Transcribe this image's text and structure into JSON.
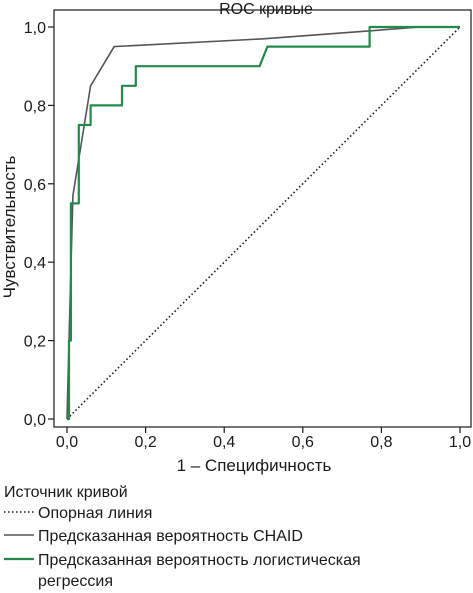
{
  "chart_data": {
    "type": "line",
    "title": "ROC кривые",
    "xlabel": "1 – Специфичность",
    "ylabel": "Чувствительность",
    "xlim": [
      0,
      1
    ],
    "ylim": [
      0,
      1
    ],
    "x_ticks": [
      "0,0",
      "0,2",
      "0,4",
      "0,6",
      "0,8",
      "1,0"
    ],
    "y_ticks": [
      "0,0",
      "0,2",
      "0,4",
      "0,6",
      "0,8",
      "1,0"
    ],
    "grid": false,
    "legend": {
      "title": "Источник кривой",
      "placement": "bottom"
    },
    "series": [
      {
        "name": "Опорная линия",
        "color": "#1a1a1a",
        "style": "dotted",
        "x": [
          0,
          1
        ],
        "y": [
          0,
          1
        ]
      },
      {
        "name": "Предсказанная вероятность CHAID",
        "color": "#555555",
        "style": "solid",
        "x": [
          0,
          0.005,
          0.015,
          0.06,
          0.12,
          0.5,
          0.9,
          1
        ],
        "y": [
          0,
          0.2,
          0.57,
          0.85,
          0.95,
          0.97,
          1,
          1
        ]
      },
      {
        "name": "Предсказанная вероятность логистическая регрессия",
        "color": "#228b4b",
        "style": "solid",
        "x": [
          0,
          0.005,
          0.005,
          0.01,
          0.01,
          0.03,
          0.03,
          0.045,
          0.045,
          0.06,
          0.06,
          0.14,
          0.14,
          0.175,
          0.175,
          0.49,
          0.51,
          0.76,
          0.77,
          0.77,
          1
        ],
        "y": [
          0,
          0,
          0.2,
          0.2,
          0.55,
          0.55,
          0.75,
          0.75,
          0.75,
          0.75,
          0.8,
          0.8,
          0.85,
          0.85,
          0.9,
          0.9,
          0.95,
          0.95,
          0.95,
          1,
          1
        ]
      }
    ]
  }
}
